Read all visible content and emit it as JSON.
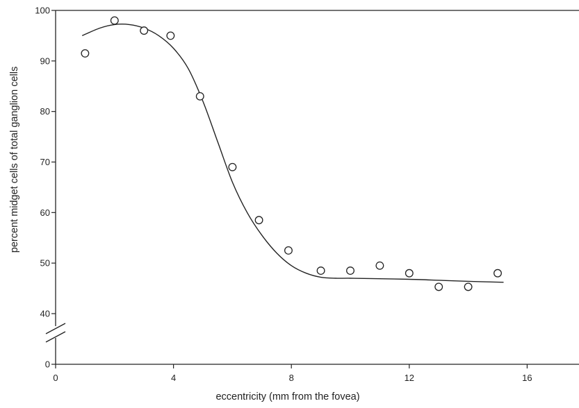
{
  "chart_data": {
    "type": "scatter",
    "title": "",
    "xlabel": "eccentricity (mm from the fovea)",
    "ylabel": "percent midget cells of total ganglion cells",
    "xlim": [
      0,
      18
    ],
    "ylim": [
      0,
      100
    ],
    "y_axis_break": [
      0,
      40
    ],
    "x_ticks": [
      0,
      4,
      8,
      12,
      16
    ],
    "y_ticks": [
      0,
      40,
      50,
      60,
      70,
      80,
      90,
      100
    ],
    "grid": false,
    "legend": "none",
    "series": [
      {
        "kind": "points",
        "marker": "open-circle",
        "x": [
          1,
          2,
          3,
          3.9,
          4.9,
          6,
          6.9,
          7.9,
          9,
          10,
          11,
          12,
          13,
          14,
          15
        ],
        "y": [
          91.5,
          98,
          96,
          95,
          83,
          69,
          58.5,
          52.5,
          48.5,
          48.5,
          49.5,
          48,
          45.3,
          45.3,
          48
        ]
      },
      {
        "kind": "line",
        "x": [
          0.9,
          1.5,
          2,
          2.5,
          3,
          3.5,
          4,
          4.5,
          5,
          5.5,
          6,
          6.5,
          7,
          7.5,
          8,
          8.5,
          9,
          9.5,
          10,
          11,
          12,
          13,
          14,
          15.2
        ],
        "y": [
          95,
          96.5,
          97.2,
          97.2,
          96.5,
          95,
          92.5,
          88.5,
          82,
          74,
          66,
          60,
          55.5,
          52,
          49.5,
          48,
          47.2,
          47,
          47,
          46.9,
          46.8,
          46.6,
          46.4,
          46.2
        ]
      }
    ]
  }
}
